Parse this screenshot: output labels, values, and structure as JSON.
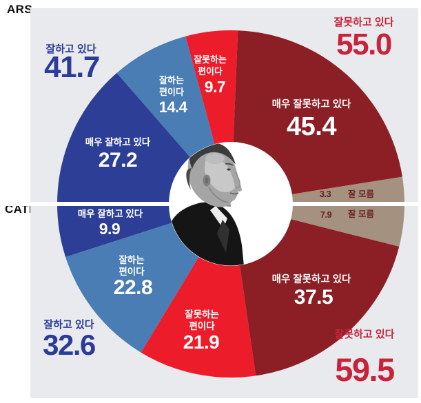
{
  "page": {
    "background": "#ffffff"
  },
  "panel": {
    "background": "#e8eaed"
  },
  "methods": {
    "ars": "ARS",
    "cati": "CATI"
  },
  "colors": {
    "panel_bg": "#e8eaed",
    "divider": "#ffffff",
    "positive_text": "#2b3b97",
    "negative_text": "#c8233a",
    "method_label_text": "#101010",
    "unknown_value_text": "#6b241f",
    "segment_label_text": "#ffffff",
    "dark_blue": "#2d3e96",
    "light_blue": "#4a7db4",
    "bright_red": "#ec1c2a",
    "dark_red": "#8b1f25",
    "unknown_brown": "#a5917f"
  },
  "center_image": {
    "alt": "grayscale side-profile photo of a man in dark suit (President Yoon) inside donut hole"
  },
  "chart_data": {
    "type": "pie",
    "title": "",
    "unit": "%",
    "layout": "two half-donut rings split by a horizontal white divider; ARS survey on top half, CATI survey on bottom half; outside totals on gray panel",
    "rings": [
      {
        "name": "ARS",
        "half": "top",
        "segments": [
          {
            "label": "매우 잘하고 있다",
            "label_lines": [
              "매우 잘하고 있다"
            ],
            "value": 27.2,
            "color": "#2d3e96"
          },
          {
            "label": "잘하는 편이다",
            "label_lines": [
              "잘하는",
              "편이다"
            ],
            "value": 14.4,
            "color": "#4a7db4"
          },
          {
            "label": "잘못하는 편이다",
            "label_lines": [
              "잘못하는",
              "편이다"
            ],
            "value": 9.7,
            "color": "#ec1c2a"
          },
          {
            "label": "매우 잘못하고 있다",
            "label_lines": [
              "매우 잘못하고 있다"
            ],
            "value": 45.4,
            "color": "#8b1f25"
          },
          {
            "label": "잘 모름",
            "label_lines": [
              "잘 모름"
            ],
            "value": 3.3,
            "color": "#a5917f"
          }
        ],
        "totals": {
          "positive": {
            "label": "잘하고 있다",
            "value": 41.7
          },
          "negative": {
            "label": "잘못하고 있다",
            "value": 55.0
          }
        }
      },
      {
        "name": "CATI",
        "half": "bottom",
        "segments": [
          {
            "label": "매우 잘하고 있다",
            "label_lines": [
              "매우 잘하고 있다"
            ],
            "value": 9.9,
            "color": "#2d3e96"
          },
          {
            "label": "잘하는 편이다",
            "label_lines": [
              "잘하는",
              "편이다"
            ],
            "value": 22.8,
            "color": "#4a7db4"
          },
          {
            "label": "잘못하는 편이다",
            "label_lines": [
              "잘못하는",
              "편이다"
            ],
            "value": 21.9,
            "color": "#ec1c2a"
          },
          {
            "label": "매우 잘못하고 있다",
            "label_lines": [
              "매우 잘못하고 있다"
            ],
            "value": 37.5,
            "color": "#8b1f25"
          },
          {
            "label": "잘 모름",
            "label_lines": [
              "잘 모름"
            ],
            "value": 7.9,
            "color": "#a5917f"
          }
        ],
        "totals": {
          "positive": {
            "label": "잘하고 있다",
            "value": 32.6
          },
          "negative": {
            "label": "잘못하고 있다",
            "value": 59.5
          }
        }
      }
    ]
  }
}
